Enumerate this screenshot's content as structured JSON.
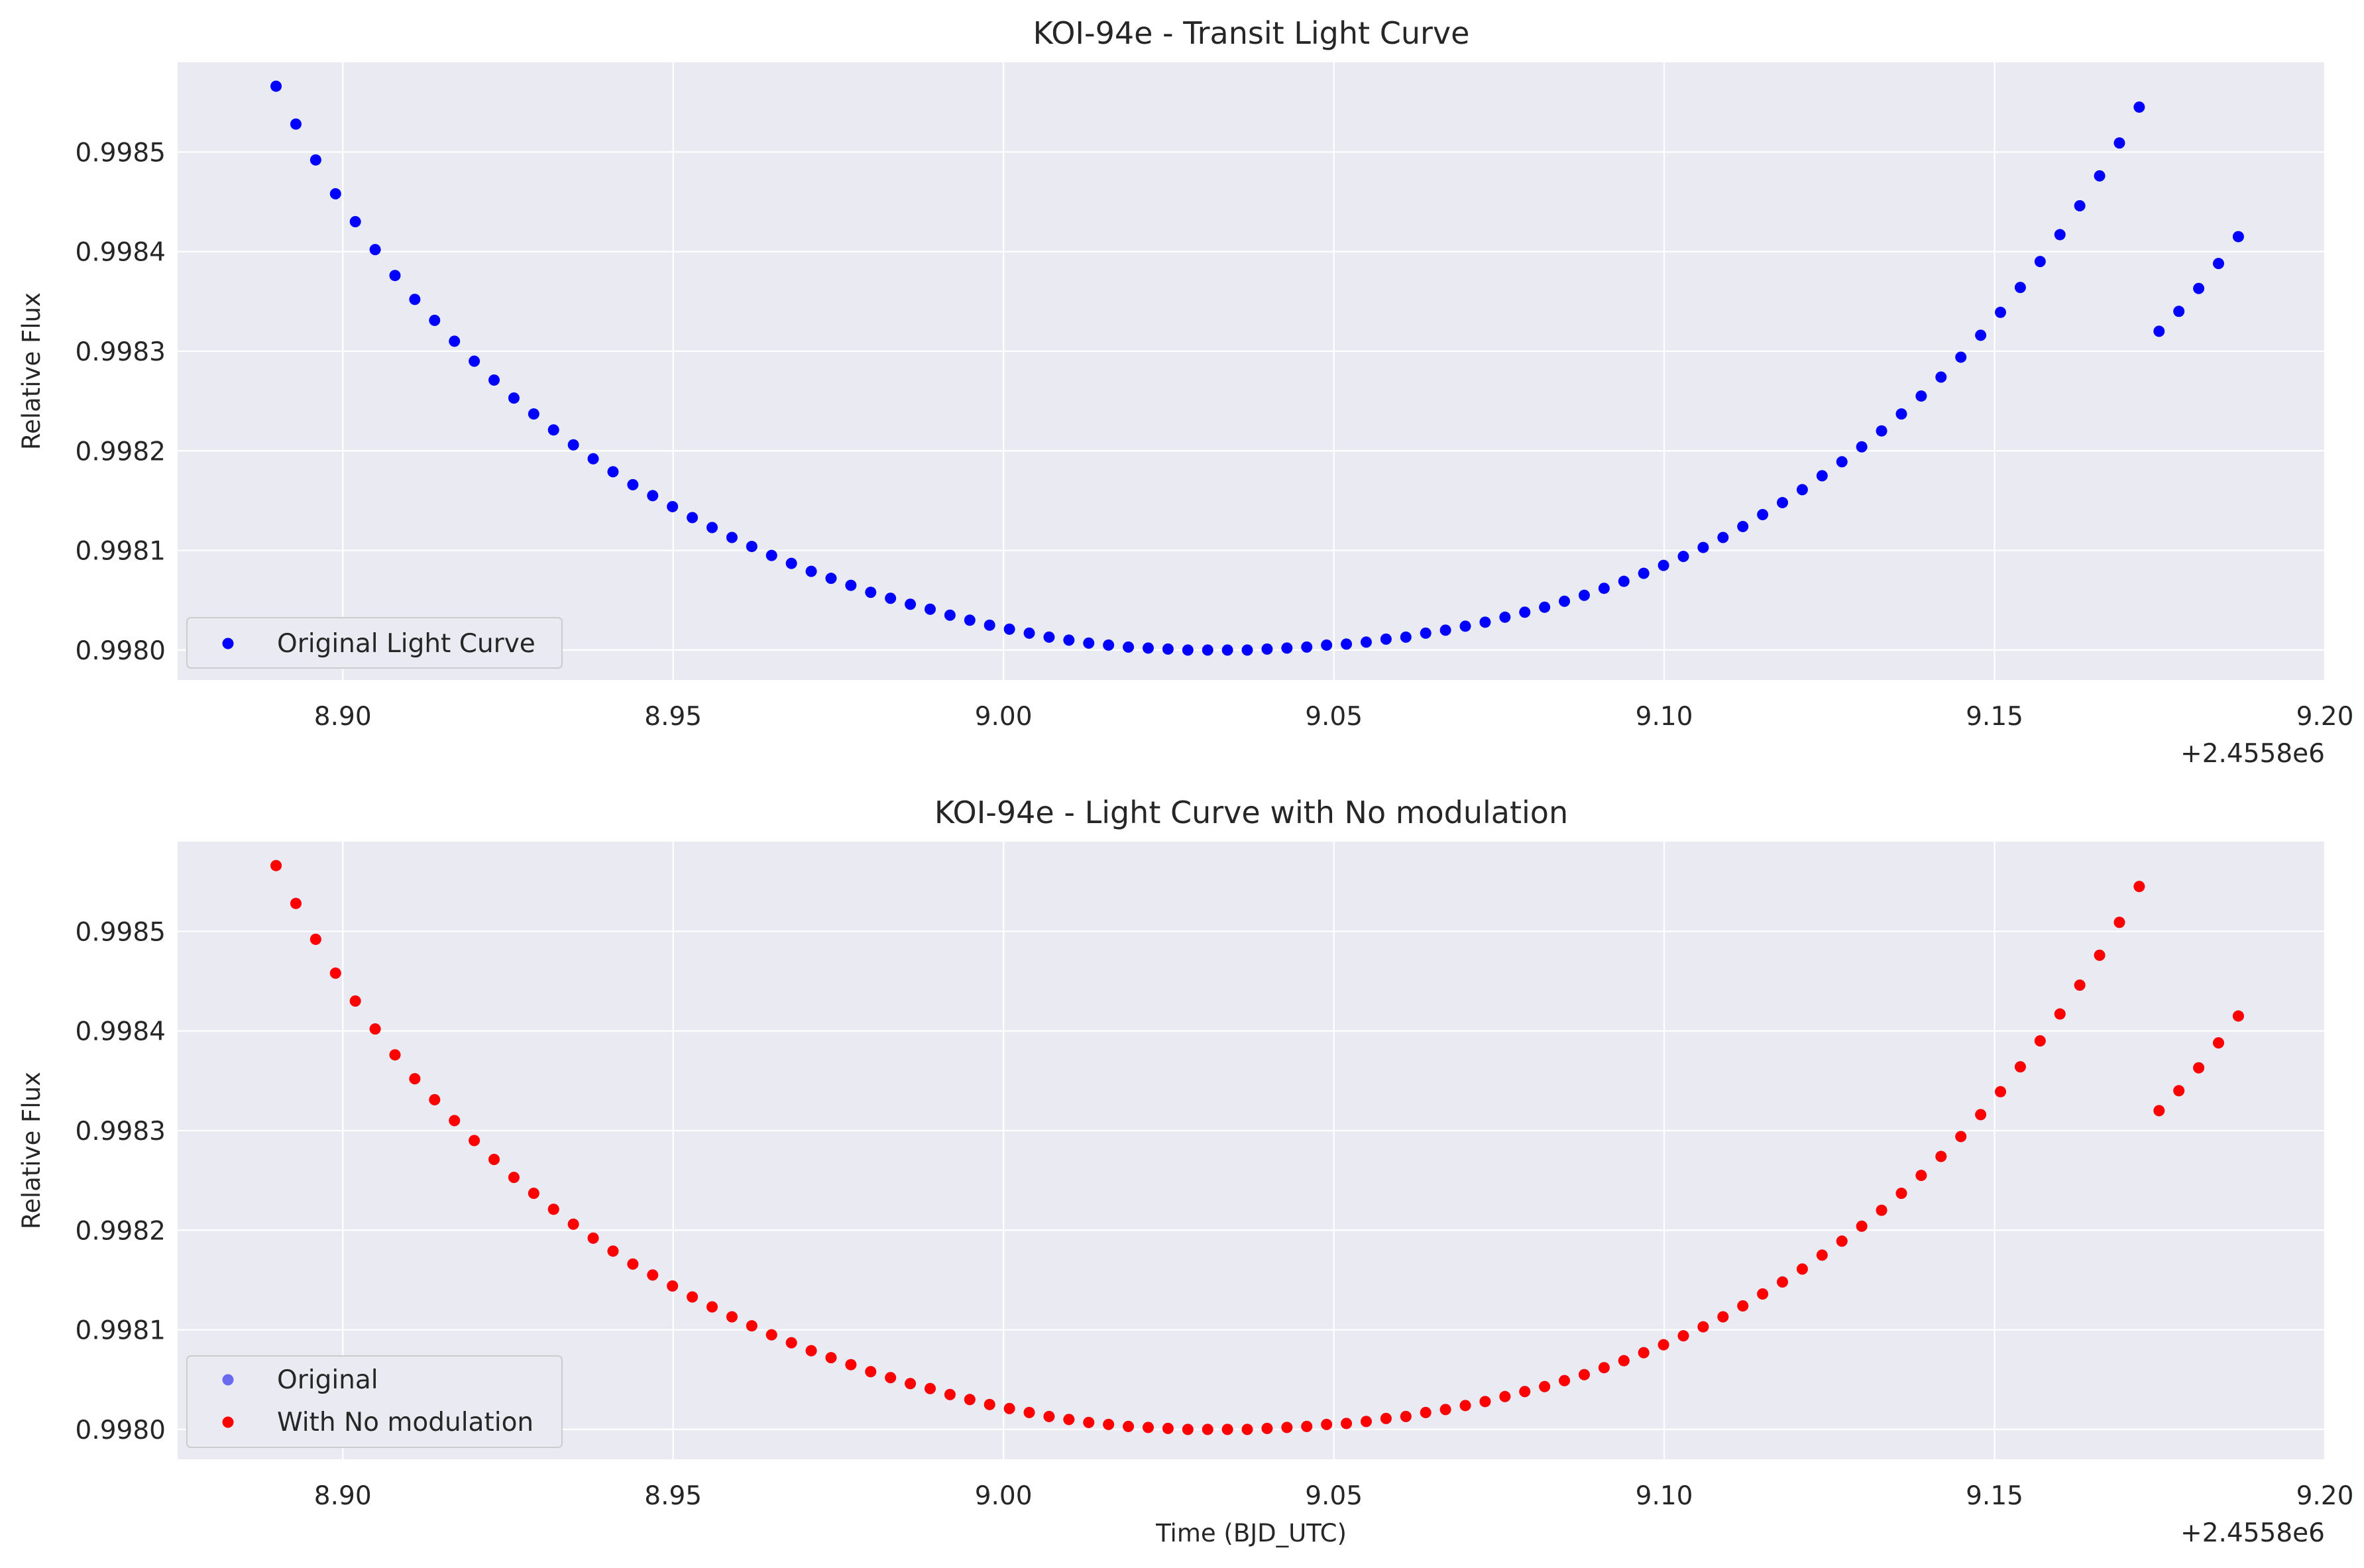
{
  "chart_data": [
    {
      "type": "scatter",
      "title": "KOI-94e - Transit Light Curve",
      "xlabel": "",
      "ylabel": "Relative Flux",
      "x_offset_label": "+2.4558e6",
      "xlim": [
        8.875,
        9.2
      ],
      "ylim": [
        0.99797,
        0.99859
      ],
      "xticks": [
        "8.90",
        "8.95",
        "9.00",
        "9.05",
        "9.10",
        "9.15",
        "9.20"
      ],
      "yticks": [
        "0.9980",
        "0.9981",
        "0.9982",
        "0.9983",
        "0.9984",
        "0.9985"
      ],
      "grid": true,
      "legend_position": "lower-left",
      "series": [
        {
          "name": "Original Light Curve",
          "color": "#0000ff",
          "x": [
            8.8899,
            8.8929,
            8.8959,
            8.8989,
            8.9019,
            8.9049,
            8.9079,
            8.9109,
            8.9139,
            8.9169,
            8.9199,
            8.9229,
            8.9259,
            8.9289,
            8.9319,
            8.9349,
            8.9379,
            8.9409,
            8.9439,
            8.9469,
            8.9499,
            8.9529,
            8.9559,
            8.9589,
            8.9619,
            8.9649,
            8.9679,
            8.9709,
            8.9739,
            8.9769,
            8.9799,
            8.9829,
            8.9859,
            8.9889,
            8.9919,
            8.9949,
            8.9979,
            9.0009,
            9.0039,
            9.0069,
            9.0099,
            9.0129,
            9.0159,
            9.0189,
            9.0219,
            9.0249,
            9.0279,
            9.0309,
            9.0339,
            9.0369,
            9.0399,
            9.0429,
            9.0459,
            9.0489,
            9.0519,
            9.0549,
            9.0579,
            9.0609,
            9.0639,
            9.0669,
            9.0699,
            9.0729,
            9.0759,
            9.0789,
            9.0819,
            9.0849,
            9.0879,
            9.0909,
            9.0939,
            9.0969,
            9.0999,
            9.1029,
            9.1059,
            9.1089,
            9.1119,
            9.1149,
            9.1179,
            9.1209,
            9.1239,
            9.1269,
            9.1299,
            9.1329,
            9.1359,
            9.1389,
            9.1419,
            9.1449,
            9.1479,
            9.1509,
            9.1539,
            9.1569,
            9.1599,
            9.1629,
            9.1659,
            9.1689,
            9.1719,
            9.1749,
            9.1779,
            9.1809,
            9.1839,
            9.1869
          ],
          "y": [
            0.998566,
            0.998528,
            0.998492,
            0.998458,
            0.99843,
            0.998402,
            0.998376,
            0.998352,
            0.998331,
            0.99831,
            0.99829,
            0.998271,
            0.998253,
            0.998237,
            0.998221,
            0.998206,
            0.998192,
            0.998179,
            0.998166,
            0.998155,
            0.998144,
            0.998133,
            0.998123,
            0.998113,
            0.998104,
            0.998095,
            0.998087,
            0.998079,
            0.998072,
            0.998065,
            0.998058,
            0.998052,
            0.998046,
            0.998041,
            0.998035,
            0.99803,
            0.998025,
            0.998021,
            0.998017,
            0.998013,
            0.99801,
            0.998007,
            0.998005,
            0.998003,
            0.998002,
            0.998001,
            0.998,
            0.998,
            0.998,
            0.998,
            0.998001,
            0.998002,
            0.998003,
            0.998005,
            0.998006,
            0.998008,
            0.998011,
            0.998013,
            0.998017,
            0.99802,
            0.998024,
            0.998028,
            0.998033,
            0.998038,
            0.998043,
            0.998049,
            0.998055,
            0.998062,
            0.998069,
            0.998077,
            0.998085,
            0.998094,
            0.998103,
            0.998113,
            0.998124,
            0.998136,
            0.998148,
            0.998161,
            0.998175,
            0.998189,
            0.998204,
            0.99822,
            0.998237,
            0.998255,
            0.998274,
            0.998294,
            0.998316,
            0.998339,
            0.998364,
            0.99839,
            0.998417,
            0.998446,
            0.998476,
            0.998509,
            0.998545,
            0.99832,
            0.99834,
            0.998363,
            0.998388,
            0.998415
          ]
        }
      ]
    },
    {
      "type": "scatter",
      "title": "KOI-94e - Light Curve with No modulation",
      "xlabel": "Time (BJD_UTC)",
      "ylabel": "Relative Flux",
      "x_offset_label": "+2.4558e6",
      "xlim": [
        8.875,
        9.2
      ],
      "ylim": [
        0.99797,
        0.99859
      ],
      "xticks": [
        "8.90",
        "8.95",
        "9.00",
        "9.05",
        "9.10",
        "9.15",
        "9.20"
      ],
      "yticks": [
        "0.9980",
        "0.9981",
        "0.9982",
        "0.9983",
        "0.9984",
        "0.9985"
      ],
      "grid": true,
      "legend_position": "lower-left",
      "series": [
        {
          "name": "Original",
          "color": "#6a6af0",
          "same_as_series_of_chart": 0
        },
        {
          "name": "With No modulation",
          "color": "#ff0000",
          "same_as_series_of_chart": 0
        }
      ]
    }
  ]
}
